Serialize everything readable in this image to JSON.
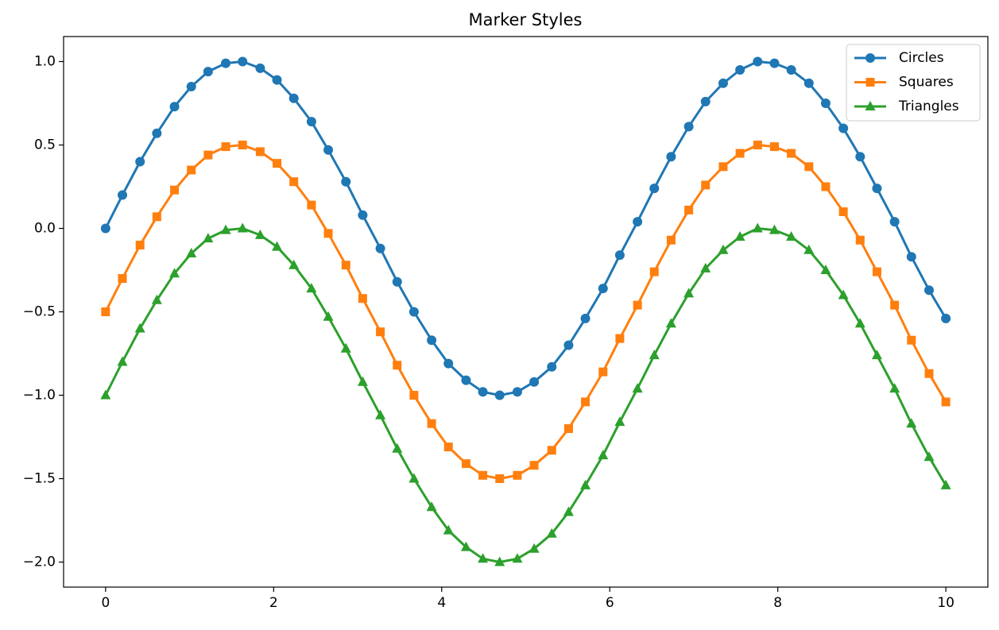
{
  "chart_data": {
    "type": "line",
    "title": "Marker Styles",
    "x": [
      0,
      0.2,
      0.41,
      0.61,
      0.82,
      1.02,
      1.22,
      1.43,
      1.63,
      1.84,
      2.04,
      2.24,
      2.45,
      2.65,
      2.86,
      3.06,
      3.27,
      3.47,
      3.67,
      3.88,
      4.08,
      4.29,
      4.49,
      4.69,
      4.9,
      5.1,
      5.31,
      5.51,
      5.71,
      5.92,
      6.12,
      6.33,
      6.53,
      6.73,
      6.94,
      7.14,
      7.35,
      7.55,
      7.76,
      7.96,
      8.16,
      8.37,
      8.57,
      8.78,
      8.98,
      9.18,
      9.39,
      9.59,
      9.8,
      10
    ],
    "series": [
      {
        "name": "Circles",
        "color": "#1f77b4",
        "marker": "circle",
        "values": [
          0,
          0.2,
          0.4,
          0.57,
          0.73,
          0.85,
          0.94,
          0.99,
          1.0,
          0.96,
          0.89,
          0.78,
          0.64,
          0.47,
          0.28,
          0.08,
          -0.12,
          -0.32,
          -0.5,
          -0.67,
          -0.81,
          -0.91,
          -0.98,
          -1.0,
          -0.98,
          -0.92,
          -0.83,
          -0.7,
          -0.54,
          -0.36,
          -0.16,
          0.04,
          0.24,
          0.43,
          0.61,
          0.76,
          0.87,
          0.95,
          1.0,
          0.99,
          0.95,
          0.87,
          0.75,
          0.6,
          0.43,
          0.24,
          0.04,
          -0.17,
          -0.37,
          -0.54
        ]
      },
      {
        "name": "Squares",
        "color": "#ff7f0e",
        "marker": "square",
        "values": [
          -0.5,
          -0.3,
          -0.1,
          0.07,
          0.23,
          0.35,
          0.44,
          0.49,
          0.5,
          0.46,
          0.39,
          0.28,
          0.14,
          -0.03,
          -0.22,
          -0.42,
          -0.62,
          -0.82,
          -1.0,
          -1.17,
          -1.31,
          -1.41,
          -1.48,
          -1.5,
          -1.48,
          -1.42,
          -1.33,
          -1.2,
          -1.04,
          -0.86,
          -0.66,
          -0.46,
          -0.26,
          -0.07,
          0.11,
          0.26,
          0.37,
          0.45,
          0.5,
          0.49,
          0.45,
          0.37,
          0.25,
          0.1,
          -0.07,
          -0.26,
          -0.46,
          -0.67,
          -0.87,
          -1.04
        ]
      },
      {
        "name": "Triangles",
        "color": "#2ca02c",
        "marker": "triangle",
        "values": [
          -1.0,
          -0.8,
          -0.6,
          -0.43,
          -0.27,
          -0.15,
          -0.06,
          -0.01,
          0.0,
          -0.04,
          -0.11,
          -0.22,
          -0.36,
          -0.53,
          -0.72,
          -0.92,
          -1.12,
          -1.32,
          -1.5,
          -1.67,
          -1.81,
          -1.91,
          -1.98,
          -2.0,
          -1.98,
          -1.92,
          -1.83,
          -1.7,
          -1.54,
          -1.36,
          -1.16,
          -0.96,
          -0.76,
          -0.57,
          -0.39,
          -0.24,
          -0.13,
          -0.05,
          0.0,
          -0.01,
          -0.05,
          -0.13,
          -0.25,
          -0.4,
          -0.57,
          -0.76,
          -0.96,
          -1.17,
          -1.37,
          -1.54
        ]
      }
    ],
    "xlim": [
      -0.5,
      10.5
    ],
    "xticks": [
      0,
      2,
      4,
      6,
      8,
      10
    ],
    "ylim": [
      -2.15,
      1.15
    ],
    "yticks": [
      {
        "value": -2.0,
        "label": "−2.0"
      },
      {
        "value": -1.5,
        "label": "−1.5"
      },
      {
        "value": -1.0,
        "label": "−1.0"
      },
      {
        "value": -0.5,
        "label": "−0.5"
      },
      {
        "value": 0.0,
        "label": "0.0"
      },
      {
        "value": 0.5,
        "label": "0.5"
      },
      {
        "value": 1.0,
        "label": "1.0"
      }
    ],
    "grid": false,
    "legend": "upper right"
  }
}
